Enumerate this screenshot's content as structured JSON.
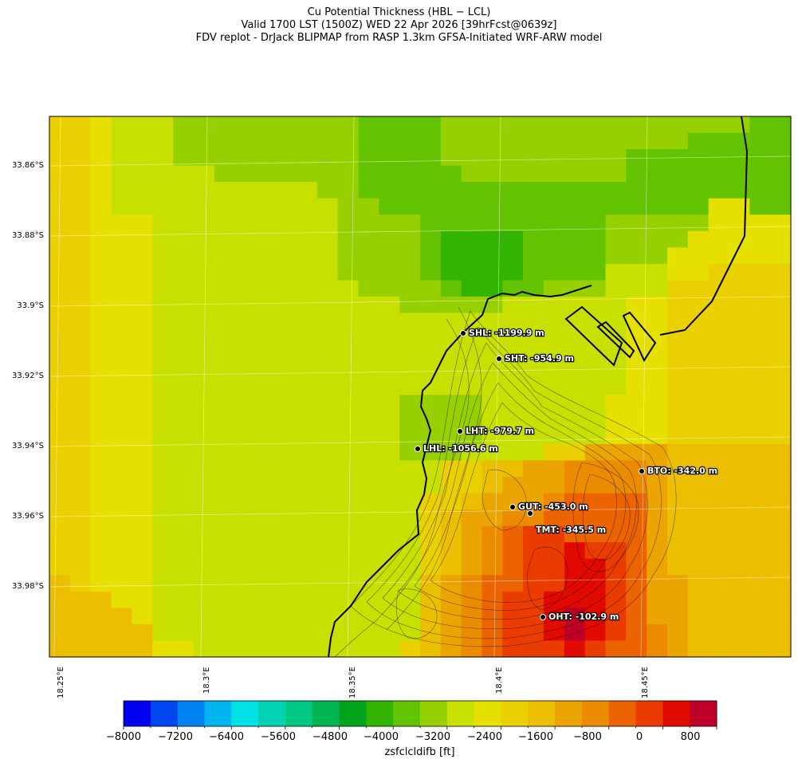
{
  "title": {
    "line1": "Cu Potential Thickness (HBL − LCL)",
    "line2": "Valid 1700 LST (1500Z) WED 22 Apr 2026 [39hrFcst@0639z]",
    "line3": "FDV replot - DrJack BLIPMAP from RASP 1.3km GFSA-Initiated WRF-ARW model"
  },
  "lat_ticks": [
    "33.86°S",
    "33.88°S",
    "33.9°S",
    "33.92°S",
    "33.94°S",
    "33.96°S",
    "33.98°S"
  ],
  "lon_ticks": [
    "18.25°E",
    "18.3°E",
    "18.35°E",
    "18.4°E",
    "18.45°E"
  ],
  "stations": [
    {
      "code": "SHL",
      "label": "SHL: -1199.9 m",
      "value_m": -1199.9
    },
    {
      "code": "SHT",
      "label": "SHT: -954.9 m",
      "value_m": -954.9
    },
    {
      "code": "LHT",
      "label": "LHT: -979.7 m",
      "value_m": -979.7
    },
    {
      "code": "LHL",
      "label": "LHL: -1056.6 m",
      "value_m": -1056.6
    },
    {
      "code": "BTO",
      "label": "BTO: -342.0 m",
      "value_m": -342.0
    },
    {
      "code": "GUT",
      "label": "GUT: -453.0 m",
      "value_m": -453.0
    },
    {
      "code": "TMT",
      "label": "TMT: -345.5 m",
      "value_m": -345.5
    },
    {
      "code": "OHT",
      "label": "OHT: -102.9 m",
      "value_m": -102.9
    }
  ],
  "colorbar": {
    "label": "zsfclcldifb [ft]",
    "min": -8000,
    "max": 1200,
    "step": 400,
    "tick_labels": [
      "−8000",
      "−7200",
      "−6400",
      "−5600",
      "−4800",
      "−4000",
      "−3200",
      "−2400",
      "−1600",
      "−800",
      "0",
      "800"
    ],
    "colors": [
      "#0000f0",
      "#0046f0",
      "#0082f0",
      "#00b4f0",
      "#00e1e6",
      "#00d2b4",
      "#00c882",
      "#00b450",
      "#00a51e",
      "#32b400",
      "#64c300",
      "#96d000",
      "#c8e000",
      "#e6e000",
      "#ebd000",
      "#ebbe00",
      "#eba500",
      "#eb8c00",
      "#eb6400",
      "#eb3c00",
      "#e10a00",
      "#be0028"
    ]
  },
  "grid_colors": [
    [
      14,
      14,
      13,
      12,
      12,
      12,
      11,
      11,
      11,
      11,
      11,
      11,
      11,
      11,
      11,
      10,
      10,
      10,
      10,
      11,
      11,
      11,
      11,
      11,
      11,
      11,
      11,
      11,
      11,
      11,
      11,
      11,
      11,
      11,
      10,
      10
    ],
    [
      14,
      14,
      13,
      12,
      12,
      12,
      11,
      11,
      11,
      11,
      11,
      11,
      11,
      11,
      11,
      10,
      10,
      10,
      10,
      11,
      11,
      11,
      11,
      11,
      11,
      11,
      11,
      11,
      11,
      11,
      11,
      10,
      10,
      10,
      10,
      10
    ],
    [
      14,
      14,
      13,
      12,
      12,
      12,
      11,
      11,
      11,
      11,
      11,
      11,
      11,
      11,
      11,
      10,
      10,
      10,
      10,
      11,
      11,
      11,
      11,
      11,
      11,
      11,
      11,
      11,
      10,
      10,
      10,
      10,
      10,
      10,
      10,
      10
    ],
    [
      14,
      14,
      13,
      12,
      12,
      12,
      12,
      12,
      11,
      11,
      11,
      11,
      11,
      11,
      11,
      10,
      10,
      10,
      10,
      10,
      11,
      11,
      11,
      11,
      11,
      11,
      11,
      11,
      10,
      10,
      10,
      10,
      10,
      10,
      10,
      10
    ],
    [
      14,
      14,
      13,
      12,
      12,
      12,
      12,
      12,
      12,
      12,
      12,
      12,
      12,
      11,
      11,
      10,
      10,
      10,
      10,
      10,
      10,
      10,
      10,
      10,
      10,
      10,
      10,
      10,
      10,
      10,
      10,
      10,
      10,
      10,
      10,
      10
    ],
    [
      14,
      14,
      13,
      12,
      12,
      12,
      12,
      12,
      12,
      12,
      12,
      12,
      12,
      12,
      11,
      11,
      10,
      10,
      10,
      10,
      10,
      10,
      10,
      10,
      10,
      10,
      10,
      10,
      10,
      10,
      10,
      10,
      13,
      13,
      10,
      10
    ],
    [
      14,
      14,
      13,
      13,
      13,
      12,
      12,
      12,
      12,
      12,
      12,
      12,
      12,
      12,
      11,
      11,
      11,
      11,
      10,
      10,
      10,
      10,
      10,
      10,
      10,
      10,
      10,
      11,
      11,
      11,
      11,
      11,
      13,
      13,
      13,
      13
    ],
    [
      14,
      14,
      13,
      13,
      13,
      12,
      12,
      12,
      12,
      12,
      12,
      12,
      12,
      12,
      11,
      11,
      11,
      11,
      10,
      9,
      9,
      9,
      9,
      10,
      10,
      10,
      10,
      11,
      11,
      11,
      11,
      13,
      13,
      13,
      13,
      13
    ],
    [
      14,
      14,
      13,
      13,
      13,
      12,
      12,
      12,
      12,
      12,
      12,
      12,
      12,
      12,
      11,
      11,
      11,
      11,
      10,
      9,
      9,
      9,
      9,
      10,
      10,
      10,
      10,
      11,
      11,
      11,
      13,
      13,
      13,
      13,
      13,
      13
    ],
    [
      14,
      14,
      13,
      13,
      13,
      12,
      12,
      12,
      12,
      12,
      12,
      12,
      12,
      12,
      11,
      11,
      11,
      11,
      10,
      9,
      9,
      9,
      9,
      10,
      10,
      10,
      10,
      12,
      12,
      12,
      13,
      13,
      14,
      14,
      14,
      14
    ],
    [
      14,
      14,
      13,
      13,
      13,
      12,
      12,
      12,
      12,
      12,
      12,
      12,
      12,
      12,
      12,
      11,
      11,
      11,
      11,
      10,
      9,
      9,
      10,
      10,
      11,
      11,
      11,
      12,
      12,
      12,
      14,
      14,
      14,
      14,
      14,
      14
    ],
    [
      14,
      14,
      13,
      13,
      13,
      12,
      12,
      12,
      12,
      12,
      12,
      12,
      12,
      12,
      12,
      12,
      12,
      11,
      11,
      11,
      11,
      11,
      12,
      12,
      12,
      12,
      12,
      12,
      13,
      13,
      14,
      14,
      14,
      14,
      14,
      14
    ],
    [
      14,
      14,
      13,
      13,
      13,
      12,
      12,
      12,
      12,
      12,
      12,
      12,
      12,
      12,
      12,
      12,
      12,
      12,
      12,
      12,
      12,
      12,
      12,
      12,
      12,
      12,
      12,
      12,
      13,
      13,
      14,
      14,
      14,
      14,
      14,
      14
    ],
    [
      14,
      14,
      13,
      13,
      13,
      12,
      12,
      12,
      12,
      12,
      12,
      12,
      12,
      12,
      12,
      12,
      12,
      12,
      12,
      12,
      12,
      12,
      12,
      12,
      12,
      12,
      12,
      12,
      13,
      13,
      14,
      14,
      14,
      14,
      14,
      14
    ],
    [
      14,
      14,
      13,
      13,
      13,
      12,
      12,
      12,
      12,
      12,
      12,
      12,
      12,
      12,
      12,
      12,
      12,
      12,
      12,
      12,
      12,
      12,
      12,
      12,
      12,
      12,
      12,
      12,
      13,
      13,
      14,
      14,
      14,
      14,
      14,
      14
    ],
    [
      14,
      14,
      13,
      13,
      13,
      12,
      12,
      12,
      12,
      12,
      12,
      12,
      12,
      12,
      12,
      12,
      12,
      12,
      12,
      12,
      12,
      12,
      12,
      12,
      12,
      12,
      12,
      12,
      13,
      13,
      14,
      14,
      14,
      14,
      14,
      14
    ],
    [
      14,
      14,
      13,
      13,
      13,
      12,
      12,
      12,
      12,
      12,
      12,
      12,
      12,
      12,
      12,
      12,
      12,
      12,
      12,
      12,
      12,
      12,
      12,
      12,
      12,
      12,
      12,
      12,
      13,
      13,
      14,
      14,
      14,
      14,
      14,
      14
    ],
    [
      14,
      14,
      13,
      13,
      13,
      12,
      12,
      12,
      12,
      12,
      12,
      12,
      12,
      12,
      12,
      12,
      12,
      11,
      11,
      11,
      11,
      12,
      12,
      12,
      12,
      12,
      12,
      13,
      13,
      13,
      14,
      14,
      14,
      14,
      14,
      14
    ],
    [
      14,
      14,
      13,
      13,
      13,
      12,
      12,
      12,
      12,
      12,
      12,
      12,
      12,
      12,
      12,
      12,
      12,
      11,
      11,
      11,
      11,
      12,
      12,
      12,
      12,
      12,
      12,
      13,
      13,
      13,
      14,
      14,
      14,
      14,
      14,
      14
    ],
    [
      14,
      14,
      13,
      13,
      13,
      12,
      12,
      12,
      12,
      12,
      12,
      12,
      12,
      12,
      12,
      12,
      12,
      11,
      11,
      11,
      11,
      12,
      12,
      12,
      12,
      12,
      12,
      13,
      13,
      13,
      14,
      14,
      14,
      14,
      14,
      14
    ],
    [
      14,
      14,
      13,
      13,
      13,
      12,
      12,
      12,
      12,
      12,
      12,
      12,
      12,
      12,
      12,
      12,
      12,
      11,
      11,
      11,
      12,
      12,
      12,
      12,
      14,
      14,
      16,
      16,
      16,
      16,
      15,
      15,
      15,
      15,
      15,
      15
    ],
    [
      14,
      14,
      13,
      13,
      13,
      12,
      12,
      12,
      12,
      12,
      12,
      12,
      12,
      12,
      12,
      12,
      12,
      12,
      12,
      14,
      14,
      15,
      15,
      16,
      16,
      17,
      17,
      17,
      17,
      16,
      15,
      15,
      15,
      15,
      15,
      15
    ],
    [
      14,
      14,
      13,
      13,
      13,
      12,
      12,
      12,
      12,
      12,
      12,
      12,
      12,
      12,
      12,
      12,
      12,
      12,
      12,
      14,
      14,
      15,
      16,
      16,
      16,
      17,
      17,
      17,
      17,
      16,
      15,
      15,
      15,
      15,
      15,
      15
    ],
    [
      14,
      14,
      13,
      13,
      13,
      12,
      12,
      12,
      12,
      12,
      12,
      12,
      12,
      12,
      12,
      12,
      12,
      12,
      14,
      14,
      15,
      16,
      16,
      16,
      17,
      18,
      18,
      18,
      18,
      16,
      15,
      15,
      15,
      15,
      15,
      15
    ],
    [
      14,
      14,
      13,
      13,
      13,
      12,
      12,
      12,
      12,
      12,
      12,
      12,
      12,
      12,
      12,
      12,
      12,
      12,
      14,
      15,
      16,
      16,
      17,
      17,
      18,
      18,
      18,
      18,
      18,
      16,
      15,
      15,
      15,
      15,
      15,
      15
    ],
    [
      14,
      14,
      13,
      13,
      13,
      12,
      12,
      12,
      12,
      12,
      12,
      12,
      12,
      12,
      12,
      12,
      12,
      12,
      14,
      15,
      16,
      17,
      18,
      19,
      19,
      18,
      18,
      18,
      18,
      16,
      15,
      15,
      15,
      15,
      15,
      15
    ],
    [
      14,
      14,
      13,
      13,
      13,
      12,
      12,
      12,
      12,
      12,
      12,
      12,
      12,
      12,
      12,
      12,
      12,
      12,
      14,
      15,
      16,
      17,
      18,
      19,
      19,
      20,
      19,
      19,
      18,
      16,
      15,
      15,
      15,
      15,
      15,
      15
    ],
    [
      14,
      14,
      13,
      13,
      13,
      12,
      12,
      12,
      12,
      12,
      12,
      12,
      12,
      12,
      12,
      12,
      12,
      12,
      14,
      15,
      16,
      17,
      18,
      19,
      19,
      20,
      20,
      19,
      18,
      16,
      15,
      15,
      15,
      15,
      15,
      15
    ],
    [
      15,
      14,
      13,
      13,
      13,
      12,
      12,
      12,
      12,
      12,
      12,
      12,
      12,
      12,
      12,
      12,
      12,
      12,
      15,
      16,
      17,
      18,
      18,
      19,
      19,
      20,
      20,
      19,
      18,
      16,
      16,
      15,
      15,
      15,
      15,
      15
    ],
    [
      15,
      15,
      15,
      13,
      13,
      12,
      12,
      12,
      12,
      12,
      12,
      12,
      12,
      12,
      12,
      12,
      12,
      12,
      15,
      16,
      17,
      18,
      19,
      19,
      20,
      20,
      20,
      19,
      18,
      16,
      16,
      15,
      15,
      15,
      15,
      15
    ],
    [
      15,
      15,
      15,
      15,
      13,
      12,
      12,
      12,
      12,
      12,
      12,
      12,
      12,
      12,
      12,
      12,
      12,
      12,
      15,
      16,
      17,
      18,
      19,
      19,
      20,
      21,
      20,
      19,
      18,
      16,
      16,
      15,
      15,
      15,
      15,
      15
    ],
    [
      15,
      15,
      15,
      15,
      15,
      12,
      12,
      12,
      12,
      12,
      12,
      12,
      12,
      12,
      12,
      12,
      12,
      12,
      15,
      16,
      17,
      18,
      19,
      19,
      20,
      21,
      20,
      19,
      18,
      17,
      16,
      15,
      15,
      15,
      15,
      15
    ],
    [
      15,
      15,
      15,
      15,
      15,
      13,
      13,
      12,
      12,
      12,
      12,
      12,
      12,
      12,
      12,
      12,
      12,
      14,
      15,
      16,
      17,
      18,
      19,
      19,
      19,
      20,
      19,
      18,
      18,
      17,
      16,
      15,
      15,
      15,
      15,
      15
    ]
  ]
}
